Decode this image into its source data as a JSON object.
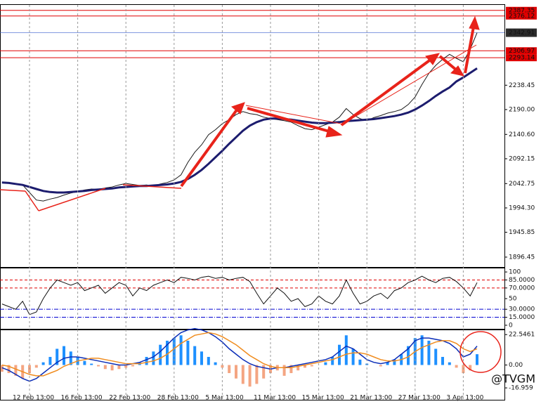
{
  "chart_data": [
    {
      "type": "line",
      "ylim": [
        1876.8,
        2398.2
      ],
      "yticks": [
        2238.45,
        {
          "value": 2190,
          "label": "2190.00"
        },
        {
          "value": 2140.6,
          "label": "2140.60"
        },
        2092.15,
        2042.75,
        {
          "value": 1994.3,
          "label": "1994.30"
        },
        1945.85,
        1896.45
      ],
      "levels": [
        2387.35,
        2376.12,
        2306.97,
        2293.14
      ],
      "level_color": "#e00000",
      "current_price": 2342.91,
      "current_color": "#2b2b2b",
      "series": [
        {
          "color": "#1a1a1a",
          "values": [
            2046,
            2045,
            2043,
            2040,
            2025,
            2010,
            2008,
            2012,
            2015,
            2020,
            2024,
            2027,
            2030,
            2032,
            2031,
            2034,
            2036,
            2040,
            2043,
            2041,
            2039,
            2040,
            2038,
            2042,
            2045,
            2050,
            2060,
            2085,
            2105,
            2120,
            2140,
            2150,
            2162,
            2170,
            2180,
            2186,
            2182,
            2180,
            2175,
            2172,
            2170,
            2168,
            2165,
            2158,
            2152,
            2150,
            2155,
            2160,
            2165,
            2175,
            2192,
            2180,
            2172,
            2168,
            2174,
            2178,
            2183,
            2186,
            2190,
            2200,
            2215,
            2240,
            2262,
            2278,
            2290,
            2300,
            2292,
            2285,
            2310,
            2342.91
          ]
        },
        {
          "color": "#1c1c6e",
          "values": [
            2045,
            2044,
            2042,
            2040,
            2036,
            2032,
            2028,
            2026,
            2025,
            2025,
            2026,
            2027,
            2028,
            2030,
            2031,
            2032,
            2033,
            2035,
            2036,
            2037,
            2038,
            2038,
            2039,
            2040,
            2041,
            2043,
            2046,
            2052,
            2060,
            2070,
            2082,
            2095,
            2108,
            2122,
            2135,
            2148,
            2158,
            2165,
            2170,
            2172,
            2172,
            2171,
            2170,
            2168,
            2166,
            2164,
            2163,
            2163,
            2164,
            2165,
            2167,
            2168,
            2169,
            2170,
            2171,
            2173,
            2175,
            2177,
            2180,
            2184,
            2190,
            2198,
            2207,
            2217,
            2226,
            2234,
            2246,
            2254,
            2263,
            2272
          ]
        }
      ]
    },
    {
      "type": "line",
      "ylim": [
        -6.7,
        106.7
      ],
      "yticks": [
        100,
        {
          "value": 85,
          "label": "85.0000"
        },
        {
          "value": 70,
          "label": "70.0000"
        },
        50,
        {
          "value": 30,
          "label": "30.0000"
        },
        {
          "value": 15,
          "label": "15.0000"
        },
        0
      ],
      "upper_color": "#e00000",
      "lower_color": "#0000d0",
      "series": [
        {
          "color": "#111111",
          "values": [
            40,
            35,
            30,
            45,
            20,
            25,
            50,
            70,
            85,
            80,
            75,
            80,
            65,
            70,
            75,
            60,
            70,
            80,
            75,
            55,
            70,
            65,
            75,
            80,
            85,
            80,
            90,
            88,
            85,
            90,
            92,
            88,
            90,
            85,
            88,
            90,
            82,
            60,
            40,
            55,
            70,
            60,
            45,
            50,
            35,
            40,
            55,
            45,
            40,
            55,
            85,
            60,
            40,
            45,
            55,
            60,
            50,
            65,
            70,
            80,
            85,
            92,
            85,
            80,
            88,
            90,
            82,
            70,
            55,
            80
          ]
        }
      ]
    },
    {
      "type": "macd",
      "ylim": [
        -25.77,
        25.77
      ],
      "yticks": [
        22.5461,
        {
          "value": 0,
          "label": "0.00"
        },
        -16.959
      ],
      "pos_color": "#1e90ff",
      "neg_color": "#f4a582",
      "categories": [
        null,
        null,
        null,
        null,
        "12 Feb 13:00",
        null,
        null,
        null,
        null,
        null,
        null,
        "16 Feb 13:00",
        null,
        null,
        null,
        null,
        null,
        null,
        "22 Feb 13:00",
        null,
        null,
        null,
        null,
        null,
        null,
        "28 Feb 13:00",
        null,
        null,
        null,
        null,
        null,
        null,
        "5 Mar 13:00",
        null,
        null,
        null,
        null,
        null,
        null,
        "11 Mar 13:00",
        null,
        null,
        null,
        null,
        null,
        null,
        "15 Mar 13:00",
        null,
        null,
        null,
        null,
        null,
        null,
        "21 Mar 13:00",
        null,
        null,
        null,
        null,
        null,
        null,
        "27 Mar 13:00",
        null,
        null,
        null,
        null,
        null,
        null,
        "3 Apr 13:00",
        null,
        null
      ],
      "values": [
        -5,
        -6,
        -8,
        -10,
        -6,
        -2,
        2,
        6,
        12,
        14,
        10,
        6,
        3,
        1,
        -1,
        -3,
        -4,
        -3,
        -2,
        -1,
        2,
        6,
        10,
        15,
        18,
        20,
        22,
        18,
        14,
        10,
        6,
        2,
        -2,
        -6,
        -10,
        -14,
        -16,
        -14,
        -10,
        -6,
        -4,
        -8,
        -6,
        -4,
        -2,
        -1,
        0,
        2,
        6,
        15,
        22,
        12,
        4,
        1,
        0,
        -1,
        2,
        4,
        8,
        14,
        20,
        22,
        18,
        12,
        6,
        2,
        -2,
        -6,
        -4,
        8
      ],
      "series": [
        {
          "color": "#0a2db8",
          "values": [
            -2,
            -4,
            -7,
            -10,
            -12,
            -10,
            -6,
            -2,
            2,
            5,
            6,
            6,
            5,
            4,
            3,
            2,
            1,
            0,
            0,
            1,
            2,
            4,
            6,
            10,
            15,
            20,
            24,
            26,
            27,
            26,
            24,
            21,
            17,
            12,
            8,
            4,
            1,
            -1,
            -2,
            -3,
            -2,
            -2,
            -1,
            0,
            1,
            2,
            3,
            4,
            6,
            10,
            14,
            12,
            8,
            4,
            2,
            1,
            2,
            4,
            8,
            12,
            18,
            20,
            20,
            19,
            18,
            16,
            12,
            6,
            8,
            14
          ]
        },
        {
          "color": "#f08c1e",
          "values": [
            0,
            -1,
            -3,
            -5,
            -7,
            -8,
            -8,
            -6,
            -4,
            -1,
            1,
            3,
            4,
            5,
            5,
            4,
            3,
            2,
            1,
            1,
            1,
            2,
            3,
            5,
            8,
            12,
            16,
            19,
            22,
            23,
            24,
            23,
            21,
            18,
            15,
            11,
            7,
            4,
            1,
            -1,
            -2,
            -2,
            -2,
            -1,
            0,
            1,
            2,
            3,
            4,
            6,
            8,
            9,
            9,
            8,
            6,
            4,
            3,
            3,
            4,
            6,
            10,
            13,
            15,
            17,
            18,
            18,
            16,
            12,
            10,
            12
          ]
        }
      ],
      "watermark": "@TVGM"
    }
  ]
}
